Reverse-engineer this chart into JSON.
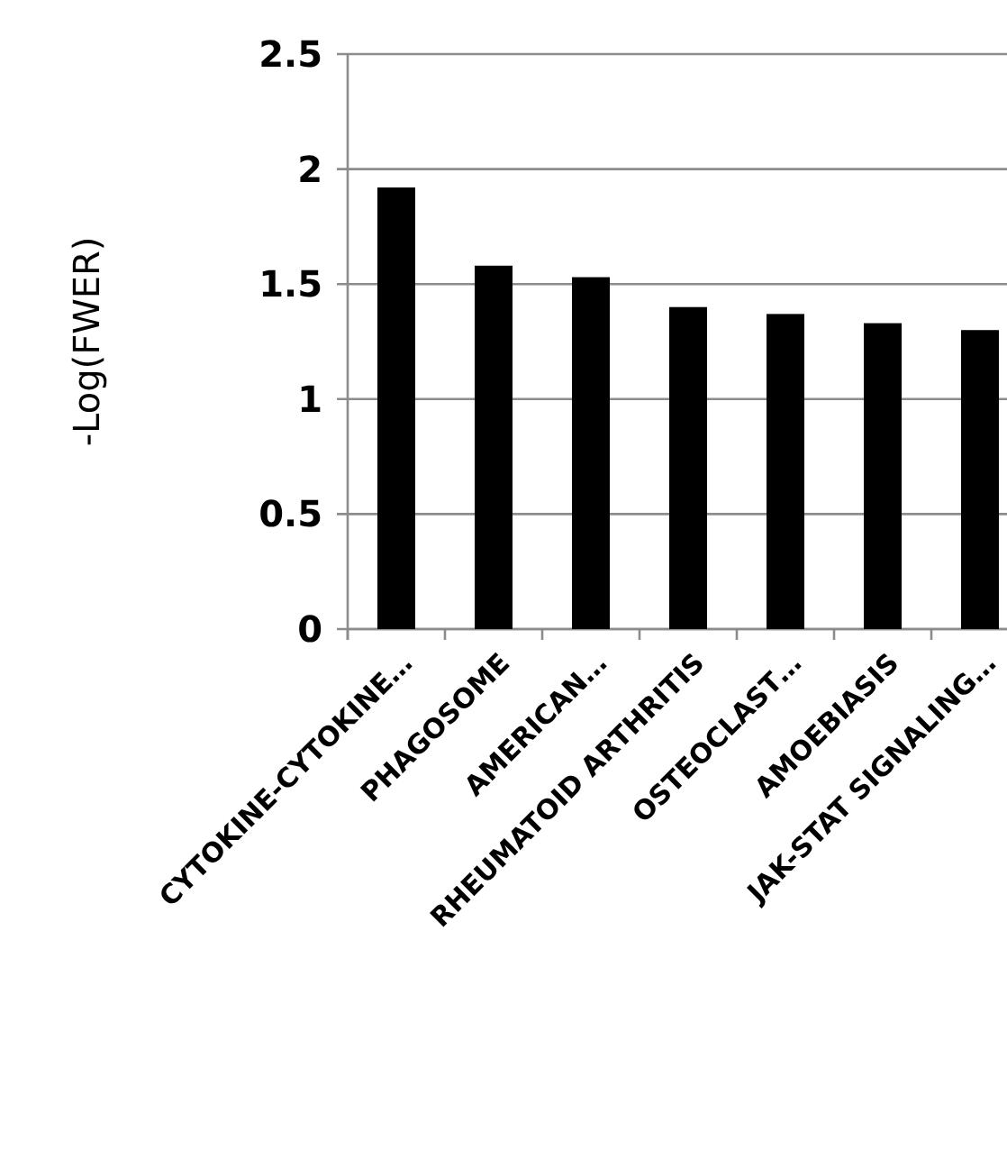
{
  "chart_data": {
    "type": "bar",
    "ylabel": "-Log(FWER)",
    "categories": [
      "CYTOKINE-CYTOKINE…",
      "PHAGOSOME",
      "AMERICAN…",
      "RHEUMATOID ARTHRITIS",
      "OSTEOCLAST…",
      "AMOEBIASIS",
      "JAK-STAT SIGNALING…"
    ],
    "values": [
      1.92,
      1.58,
      1.53,
      1.4,
      1.37,
      1.33,
      1.3
    ],
    "color": "#000000",
    "ylim": [
      0,
      2.5
    ],
    "yticks": [
      {
        "value": 0,
        "label": "0"
      },
      {
        "value": 0.5,
        "label": "0.5"
      },
      {
        "value": 1,
        "label": "1"
      },
      {
        "value": 1.5,
        "label": "1.5"
      },
      {
        "value": 2,
        "label": "2"
      },
      {
        "value": 2.5,
        "label": "2.5"
      }
    ],
    "grid": "y"
  }
}
